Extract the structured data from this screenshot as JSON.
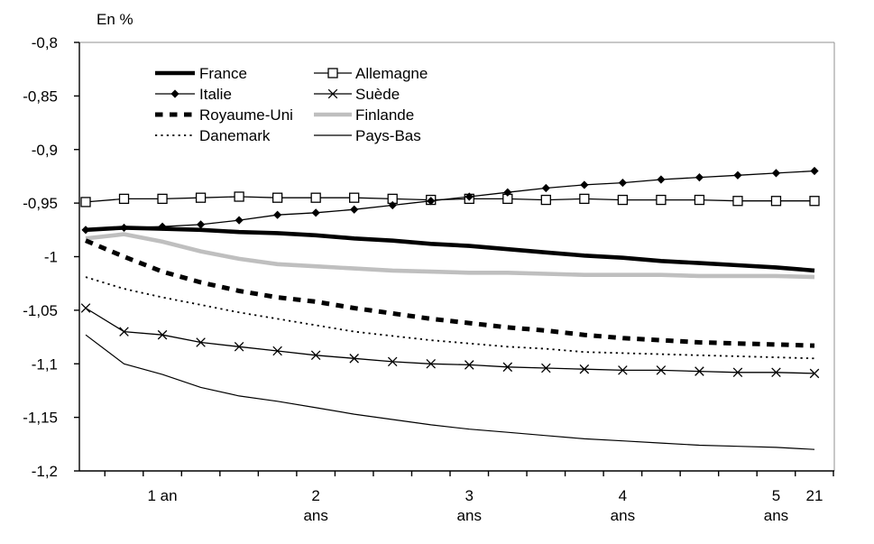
{
  "chart_data": {
    "type": "line",
    "title": "En %",
    "x_type": "category",
    "x_point_count": 20,
    "x_tick_labels": [
      {
        "index": 2,
        "lines": [
          "1 an"
        ]
      },
      {
        "index": 6,
        "lines": [
          "2",
          "ans"
        ]
      },
      {
        "index": 10,
        "lines": [
          "3",
          "ans"
        ]
      },
      {
        "index": 14,
        "lines": [
          "4",
          "ans"
        ]
      },
      {
        "index": 18,
        "lines": [
          "5",
          "ans"
        ]
      },
      {
        "index": 19,
        "lines": [
          "21"
        ]
      }
    ],
    "ylim": [
      -1.2,
      -0.8
    ],
    "y_ticks": [
      {
        "label": "-0,8",
        "value": -0.8
      },
      {
        "label": "-0,85",
        "value": -0.85
      },
      {
        "label": "-0,9",
        "value": -0.9
      },
      {
        "label": "-0,95",
        "value": -0.95
      },
      {
        "label": "-1",
        "value": -1.0
      },
      {
        "label": "-1,05",
        "value": -1.05
      },
      {
        "label": "-1,1",
        "value": -1.1
      },
      {
        "label": "-1,15",
        "value": -1.15
      },
      {
        "label": "-1,2",
        "value": -1.2
      }
    ],
    "grid": false,
    "legend_position": "top-left-inside",
    "colors": {
      "black": "#000000",
      "gray_series": "#bfbfbf",
      "plot_border": "#909090"
    },
    "series": [
      {
        "name": "France",
        "color": "#000000",
        "width": 4.6,
        "dash": null,
        "marker": null,
        "values": [
          -0.975,
          -0.973,
          -0.974,
          -0.975,
          -0.977,
          -0.978,
          -0.98,
          -0.983,
          -0.985,
          -0.988,
          -0.99,
          -0.993,
          -0.996,
          -0.999,
          -1.001,
          -1.004,
          -1.006,
          -1.008,
          -1.01,
          -1.013
        ]
      },
      {
        "name": "Allemagne",
        "color": "#000000",
        "width": 1.3,
        "dash": null,
        "marker": "square",
        "values": [
          -0.949,
          -0.946,
          -0.946,
          -0.945,
          -0.944,
          -0.945,
          -0.945,
          -0.945,
          -0.946,
          -0.947,
          -0.946,
          -0.946,
          -0.947,
          -0.946,
          -0.947,
          -0.947,
          -0.947,
          -0.948,
          -0.948,
          -0.948
        ]
      },
      {
        "name": "Italie",
        "color": "#000000",
        "width": 1.3,
        "dash": null,
        "marker": "diamond",
        "values": [
          -0.975,
          -0.973,
          -0.972,
          -0.97,
          -0.966,
          -0.961,
          -0.959,
          -0.956,
          -0.952,
          -0.948,
          -0.944,
          -0.94,
          -0.936,
          -0.933,
          -0.931,
          -0.928,
          -0.926,
          -0.924,
          -0.922,
          -0.92
        ]
      },
      {
        "name": "Suède",
        "color": "#000000",
        "width": 1.3,
        "dash": null,
        "marker": "x",
        "values": [
          -1.048,
          -1.07,
          -1.073,
          -1.08,
          -1.084,
          -1.088,
          -1.092,
          -1.095,
          -1.098,
          -1.1,
          -1.101,
          -1.103,
          -1.104,
          -1.105,
          -1.106,
          -1.106,
          -1.107,
          -1.108,
          -1.108,
          -1.109
        ]
      },
      {
        "name": "Royaume-Uni",
        "color": "#000000",
        "width": 5.0,
        "dash": "8.5 7.5",
        "marker": null,
        "values": [
          -0.985,
          -1.0,
          -1.014,
          -1.024,
          -1.032,
          -1.038,
          -1.042,
          -1.048,
          -1.053,
          -1.058,
          -1.062,
          -1.066,
          -1.069,
          -1.073,
          -1.076,
          -1.078,
          -1.08,
          -1.081,
          -1.082,
          -1.083
        ]
      },
      {
        "name": "Finlande",
        "color": "#bfbfbf",
        "width": 4.6,
        "dash": null,
        "marker": null,
        "values": [
          -0.983,
          -0.979,
          -0.986,
          -0.995,
          -1.002,
          -1.007,
          -1.009,
          -1.011,
          -1.013,
          -1.014,
          -1.015,
          -1.015,
          -1.016,
          -1.017,
          -1.017,
          -1.017,
          -1.018,
          -1.018,
          -1.018,
          -1.019
        ]
      },
      {
        "name": "Danemark",
        "color": "#000000",
        "width": 1.8,
        "dash": "2.2 4.2",
        "marker": null,
        "values": [
          -1.019,
          -1.03,
          -1.038,
          -1.045,
          -1.052,
          -1.058,
          -1.064,
          -1.07,
          -1.074,
          -1.078,
          -1.081,
          -1.084,
          -1.086,
          -1.089,
          -1.09,
          -1.091,
          -1.092,
          -1.093,
          -1.094,
          -1.095
        ]
      },
      {
        "name": "Pays-Bas",
        "color": "#000000",
        "width": 1.2,
        "dash": null,
        "marker": null,
        "values": [
          -1.073,
          -1.1,
          -1.11,
          -1.122,
          -1.13,
          -1.135,
          -1.141,
          -1.147,
          -1.152,
          -1.157,
          -1.161,
          -1.164,
          -1.167,
          -1.17,
          -1.172,
          -1.174,
          -1.176,
          -1.177,
          -1.178,
          -1.18
        ]
      }
    ],
    "legend_order_row_major": [
      "France",
      "Allemagne",
      "Italie",
      "Suède",
      "Royaume-Uni",
      "Finlande",
      "Danemark",
      "Pays-Bas"
    ]
  }
}
